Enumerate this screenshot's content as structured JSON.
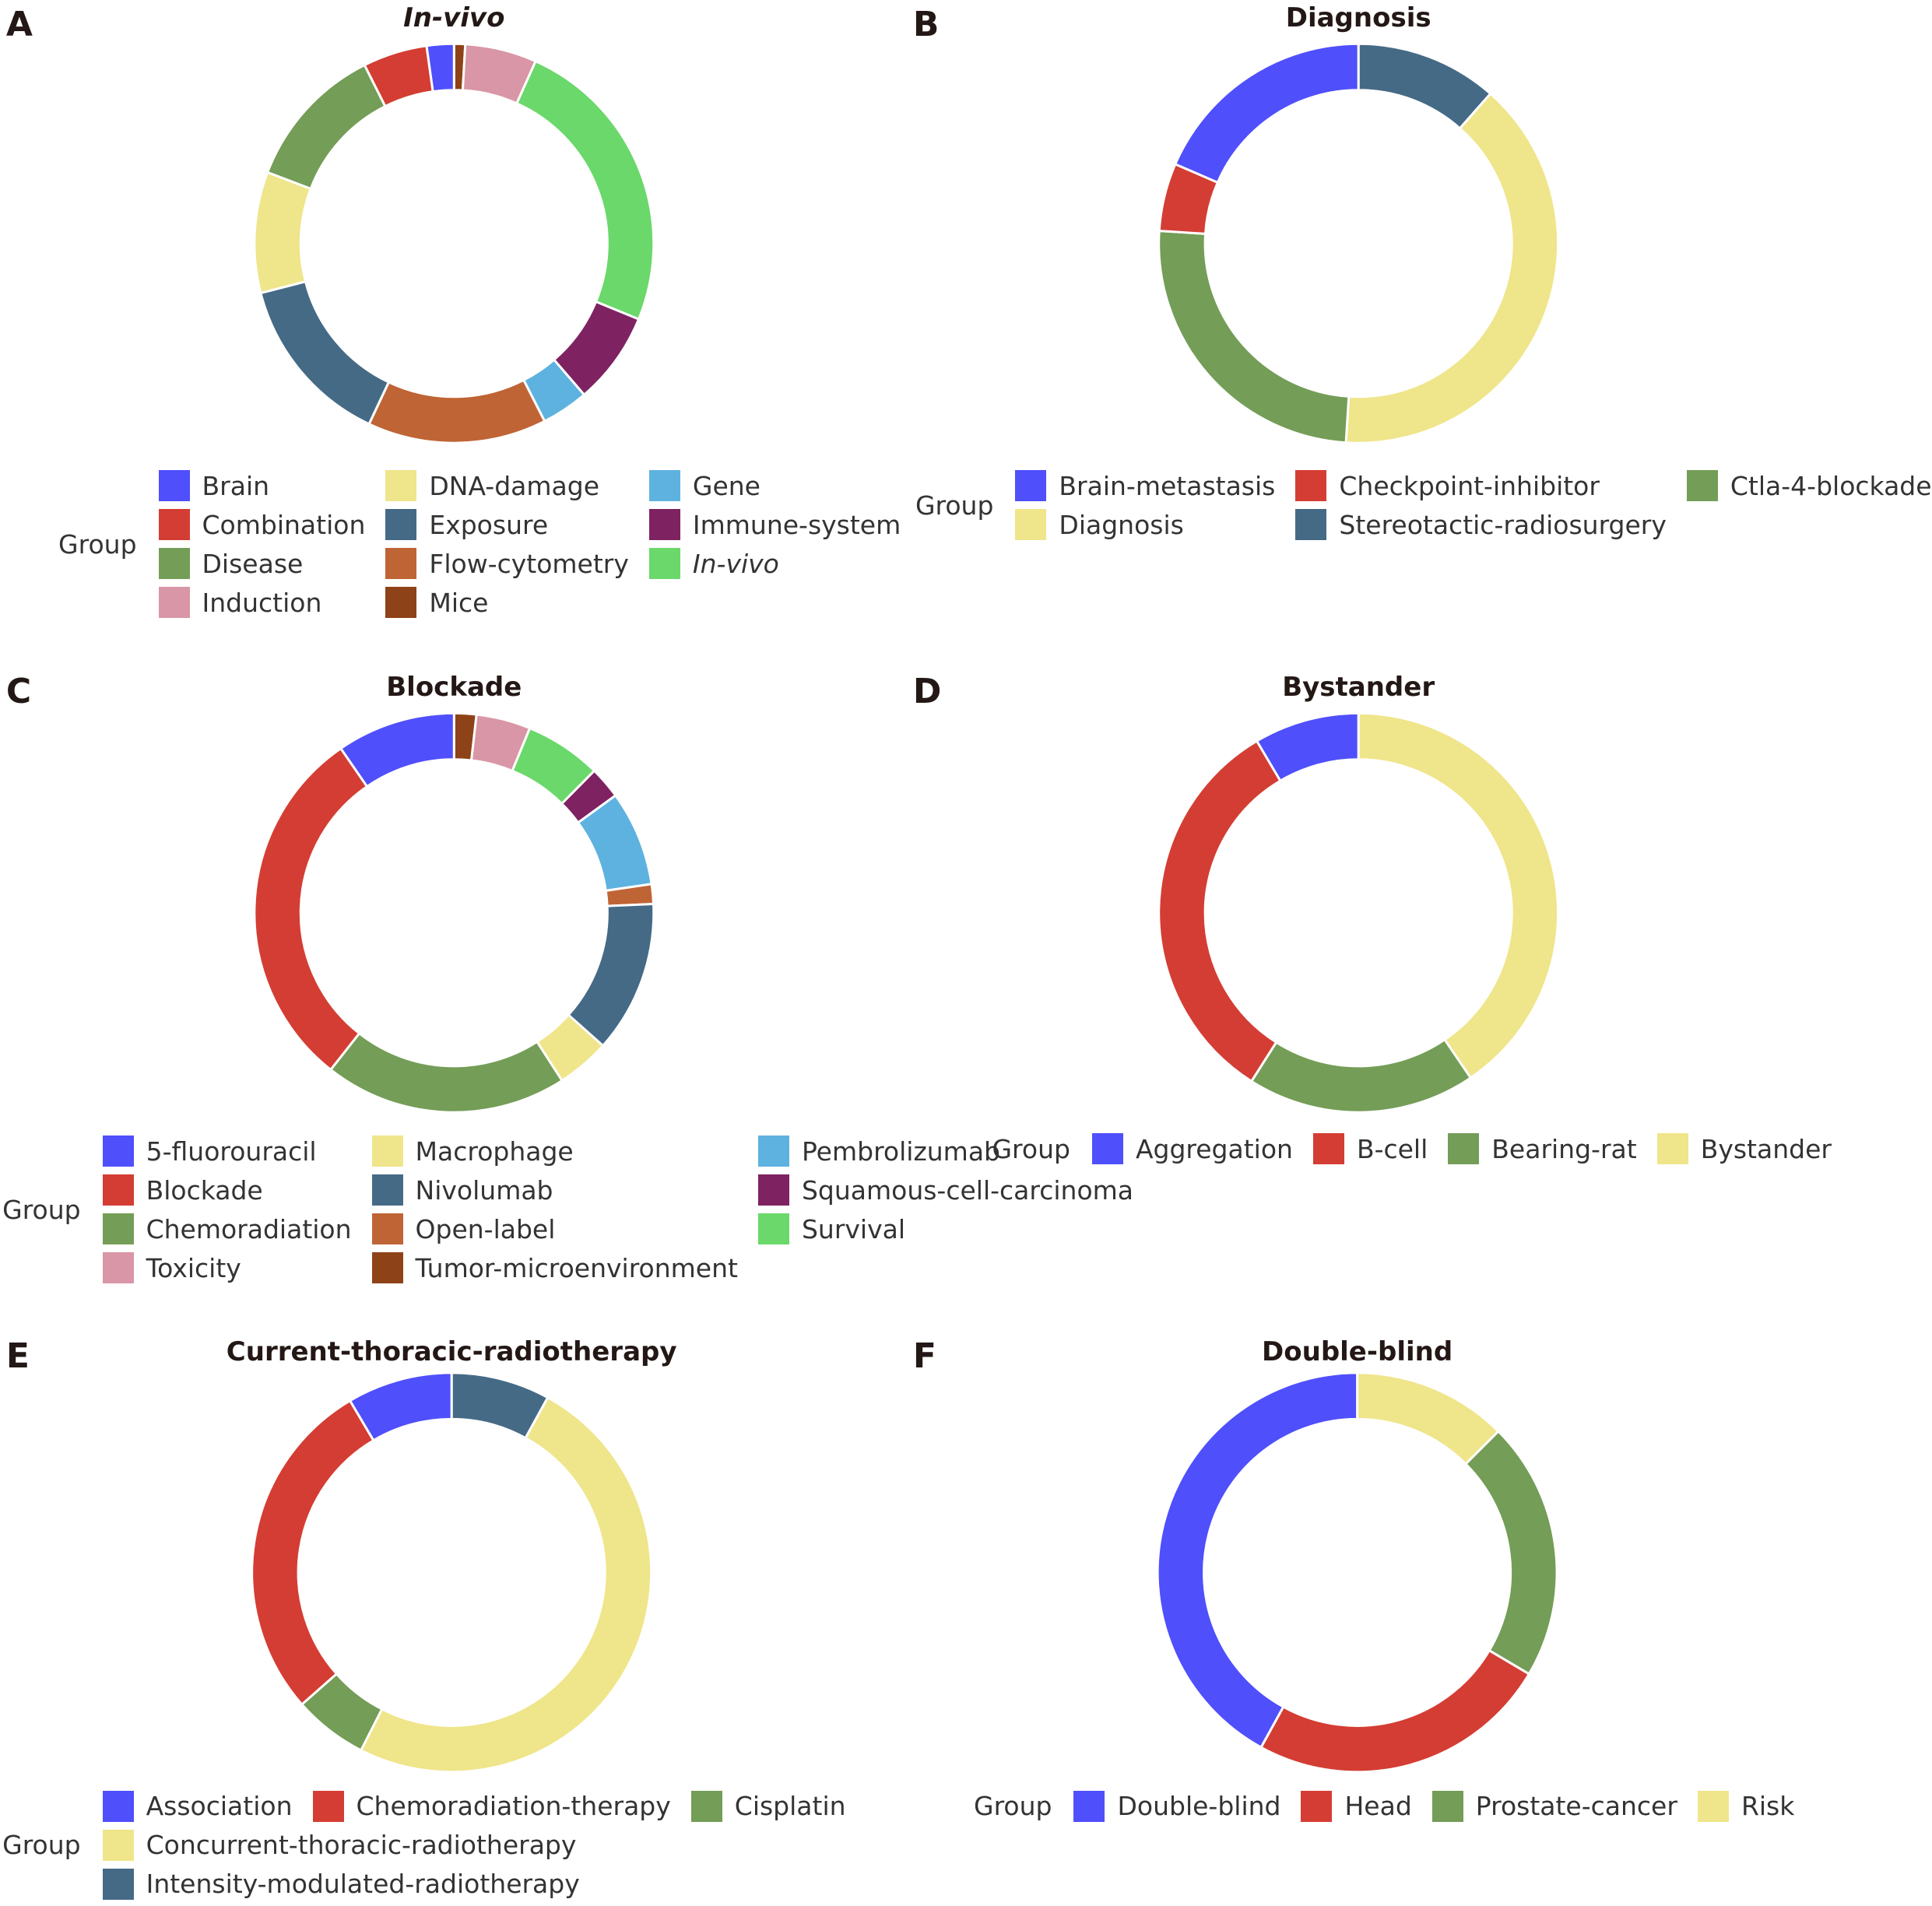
{
  "colors": {
    "blue": "#4f4ffc",
    "red": "#d43d33",
    "green": "#749d57",
    "yellow": "#efe58a",
    "slate": "#456a86",
    "orange": "#bf6435",
    "lightblue": "#5eb2df",
    "purple": "#7e2262",
    "brightgreen": "#6ad86a",
    "pink": "#d996a6",
    "brown": "#8e4217"
  },
  "chart_data": [
    {
      "panel": "A",
      "type": "pie",
      "title": "In-vivo",
      "title_italic": true,
      "legend_title": "Group",
      "legend_rows": 4,
      "legend_entries": [
        "Brain",
        "Combination",
        "Disease",
        "Induction",
        "DNA-damage",
        "Exposure",
        "Flow-cytometry",
        "Mice",
        "Gene",
        "Immune-system",
        "In-vivo"
      ],
      "italic_entries": [
        "In-vivo"
      ],
      "slices": [
        {
          "label": "Mice",
          "value": 0.9,
          "color": "brown"
        },
        {
          "label": "Induction",
          "value": 5.8,
          "color": "pink"
        },
        {
          "label": "In-vivo",
          "value": 24.5,
          "color": "brightgreen"
        },
        {
          "label": "Immune-system",
          "value": 7.5,
          "color": "purple"
        },
        {
          "label": "Gene",
          "value": 3.8,
          "color": "lightblue"
        },
        {
          "label": "Flow-cytometry",
          "value": 14.5,
          "color": "orange"
        },
        {
          "label": "Exposure",
          "value": 14.0,
          "color": "slate"
        },
        {
          "label": "DNA-damage",
          "value": 9.8,
          "color": "yellow"
        },
        {
          "label": "Disease",
          "value": 11.8,
          "color": "green"
        },
        {
          "label": "Combination",
          "value": 5.2,
          "color": "red"
        },
        {
          "label": "Brain",
          "value": 2.2,
          "color": "blue"
        }
      ]
    },
    {
      "panel": "B",
      "type": "pie",
      "title": "Diagnosis",
      "title_italic": false,
      "legend_title": "Group",
      "legend_rows": 2,
      "legend_row_major": true,
      "legend_entries": [
        "Brain-metastasis",
        "Checkpoint-inhibitor",
        "Ctla-4-blockade",
        "Diagnosis",
        "Stereotactic-radiosurgery"
      ],
      "italic_entries": [],
      "slices": [
        {
          "label": "Stereotactic-radiosurgery",
          "value": 11.5,
          "color": "slate"
        },
        {
          "label": "Diagnosis",
          "value": 39.5,
          "color": "yellow"
        },
        {
          "label": "Ctla-4-blockade",
          "value": 25.0,
          "color": "green"
        },
        {
          "label": "Checkpoint-inhibitor",
          "value": 5.5,
          "color": "red"
        },
        {
          "label": "Brain-metastasis",
          "value": 18.5,
          "color": "blue"
        }
      ]
    },
    {
      "panel": "C",
      "type": "pie",
      "title": "Blockade",
      "title_italic": false,
      "legend_title": "Group",
      "legend_rows": 4,
      "legend_entries": [
        "5-fluorouracil",
        "Blockade",
        "Chemoradiation",
        "Toxicity",
        "Macrophage",
        "Nivolumab",
        "Open-label",
        "Tumor-microenvironment",
        "Pembrolizumab",
        "Squamous-cell-carcinoma",
        "Survival"
      ],
      "italic_entries": [],
      "slices": [
        {
          "label": "Tumor-microenvironment",
          "value": 1.8,
          "color": "brown"
        },
        {
          "label": "Toxicity",
          "value": 4.4,
          "color": "pink"
        },
        {
          "label": "Survival",
          "value": 6.2,
          "color": "brightgreen"
        },
        {
          "label": "Squamous-cell-carcinoma",
          "value": 2.6,
          "color": "purple"
        },
        {
          "label": "Pembrolizumab",
          "value": 7.7,
          "color": "lightblue"
        },
        {
          "label": "Open-label",
          "value": 1.6,
          "color": "orange"
        },
        {
          "label": "Nivolumab",
          "value": 12.3,
          "color": "slate"
        },
        {
          "label": "Macrophage",
          "value": 4.3,
          "color": "yellow"
        },
        {
          "label": "Chemoradiation",
          "value": 19.7,
          "color": "green"
        },
        {
          "label": "Blockade",
          "value": 29.8,
          "color": "red"
        },
        {
          "label": "5-fluorouracil",
          "value": 9.6,
          "color": "blue"
        }
      ]
    },
    {
      "panel": "D",
      "type": "pie",
      "title": "Bystander",
      "title_italic": false,
      "legend_title": "Group",
      "legend_rows": 1,
      "legend_entries": [
        "Aggregation",
        "B-cell",
        "Bearing-rat",
        "Bystander"
      ],
      "italic_entries": [],
      "slices": [
        {
          "label": "Bystander",
          "value": 40.5,
          "color": "yellow"
        },
        {
          "label": "Bearing-rat",
          "value": 18.5,
          "color": "green"
        },
        {
          "label": "B-cell",
          "value": 32.5,
          "color": "red"
        },
        {
          "label": "Aggregation",
          "value": 8.5,
          "color": "blue"
        }
      ]
    },
    {
      "panel": "E",
      "type": "pie",
      "title": "Current-thoracic-radiotherapy",
      "title_italic": false,
      "legend_title": "Group",
      "legend_rows": 3,
      "legend_row_major": true,
      "legend_layout": [
        [
          "Association",
          "Chemoradiation-therapy",
          "Cisplatin"
        ],
        [
          "Concurrent-thoracic-radiotherapy"
        ],
        [
          "Intensity-modulated-radiotherapy"
        ]
      ],
      "legend_entries": [
        "Association",
        "Chemoradiation-therapy",
        "Cisplatin",
        "Concurrent-thoracic-radiotherapy",
        "Intensity-modulated-radiotherapy"
      ],
      "italic_entries": [],
      "slices": [
        {
          "label": "Intensity-modulated-radiotherapy",
          "value": 8.0,
          "color": "slate"
        },
        {
          "label": "Concurrent-thoracic-radiotherapy",
          "value": 49.5,
          "color": "yellow"
        },
        {
          "label": "Cisplatin",
          "value": 6.0,
          "color": "green"
        },
        {
          "label": "Chemoradiation-therapy",
          "value": 28.0,
          "color": "red"
        },
        {
          "label": "Association",
          "value": 8.5,
          "color": "blue"
        }
      ]
    },
    {
      "panel": "F",
      "type": "pie",
      "title": "Double-blind",
      "title_italic": false,
      "legend_title": "Group",
      "legend_rows": 1,
      "legend_entries": [
        "Double-blind",
        "Head",
        "Prostate-cancer",
        "Risk"
      ],
      "italic_entries": [],
      "slices": [
        {
          "label": "Risk",
          "value": 12.5,
          "color": "yellow"
        },
        {
          "label": "Prostate-cancer",
          "value": 21.0,
          "color": "green"
        },
        {
          "label": "Head",
          "value": 24.5,
          "color": "red"
        },
        {
          "label": "Double-blind",
          "value": 42.0,
          "color": "blue"
        }
      ]
    }
  ]
}
